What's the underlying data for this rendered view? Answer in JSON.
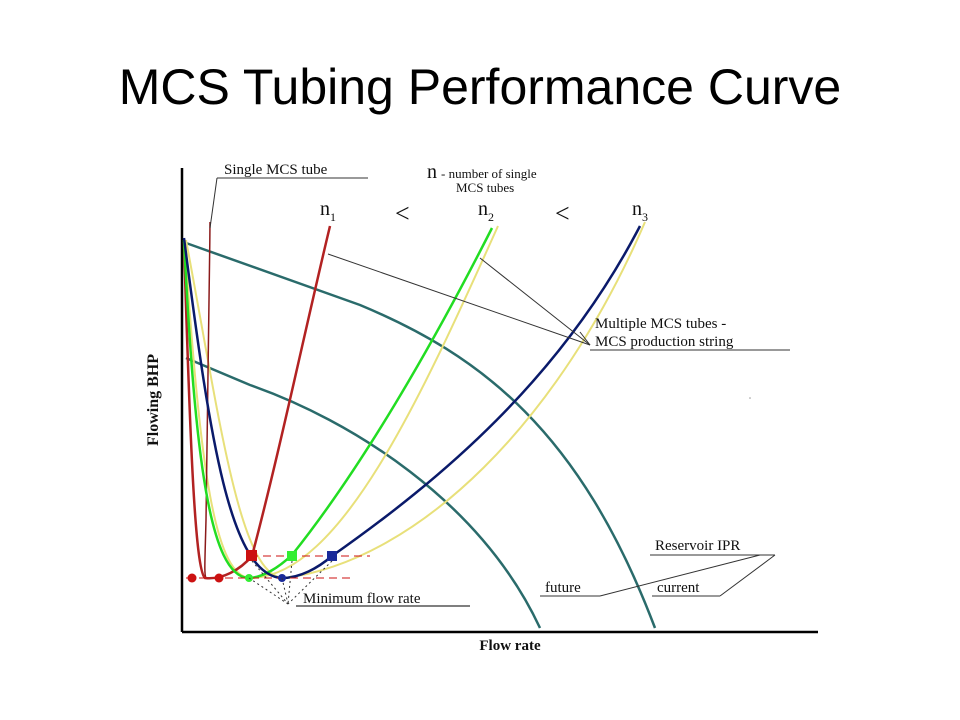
{
  "slide": {
    "title": "MCS Tubing Performance Curve"
  },
  "axes": {
    "y_label": "Flowing BHP",
    "x_label": "Flow rate"
  },
  "labels": {
    "single_tube": "Single MCS tube",
    "n_definition_symbol": "n",
    "n_definition_line1": "- number of single",
    "n_definition_line2": "MCS tubes",
    "n1": "n",
    "n1_sub": "1",
    "n2": "n",
    "n2_sub": "2",
    "n3": "n",
    "n3_sub": "3",
    "less_than_1": "<",
    "less_than_2": "<",
    "multiple_line1": "Multiple MCS tubes -",
    "multiple_line2": "MCS production string",
    "reservoir_ipr": "Reservoir IPR",
    "future": "future",
    "current": "current",
    "minimum_flow_rate": "Minimum flow rate"
  },
  "colors": {
    "single_tube": "#8b1a1a",
    "n1": "#b22222",
    "n2": "#22dd22",
    "n3": "#0a1a6a",
    "ipr": "#2a6b6b",
    "yellow_shadow": "#e8e07a",
    "marker_red": "#cc1111",
    "marker_green": "#33ee33",
    "marker_blue": "#1a2a9a"
  }
}
